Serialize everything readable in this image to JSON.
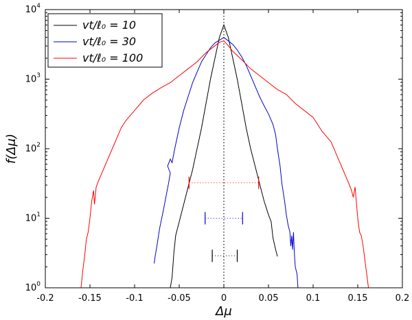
{
  "chart_data": {
    "type": "line",
    "title": "",
    "xlabel": "Δμ",
    "ylabel": "f(Δμ)",
    "xlim": [
      -0.2,
      0.2
    ],
    "ylim_log10": [
      0,
      4
    ],
    "yscale": "log",
    "x_ticks": [
      -0.2,
      -0.15,
      -0.1,
      -0.05,
      0,
      0.05,
      0.1,
      0.15,
      0.2
    ],
    "x_tick_labels": [
      "-0.2",
      "-0.15",
      "-0.1",
      "-0.05",
      "0",
      "0.05",
      "0.1",
      "0.15",
      "0.2"
    ],
    "y_ticks_log10": [
      0,
      1,
      2,
      3,
      4
    ],
    "y_tick_labels": [
      {
        "base": "10",
        "exp": "0"
      },
      {
        "base": "10",
        "exp": "1"
      },
      {
        "base": "10",
        "exp": "2"
      },
      {
        "base": "10",
        "exp": "3"
      },
      {
        "base": "10",
        "exp": "4"
      }
    ],
    "legend_position": "top-left",
    "reference_line_x": 0,
    "series": [
      {
        "name": "vt/ℓ₀ = 10",
        "color": "#000000",
        "points": [
          [
            -0.06,
            0.0
          ],
          [
            -0.058,
            0.15
          ],
          [
            -0.056,
            0.5
          ],
          [
            -0.054,
            0.75
          ],
          [
            -0.052,
            0.85
          ],
          [
            -0.05,
            0.95
          ],
          [
            -0.045,
            1.2
          ],
          [
            -0.04,
            1.45
          ],
          [
            -0.035,
            1.7
          ],
          [
            -0.03,
            2.0
          ],
          [
            -0.025,
            2.3
          ],
          [
            -0.02,
            2.65
          ],
          [
            -0.015,
            3.0
          ],
          [
            -0.01,
            3.3
          ],
          [
            -0.005,
            3.6
          ],
          [
            0.0,
            3.78
          ],
          [
            0.005,
            3.6
          ],
          [
            0.01,
            3.3
          ],
          [
            0.015,
            3.0
          ],
          [
            0.02,
            2.65
          ],
          [
            0.025,
            2.3
          ],
          [
            0.03,
            2.0
          ],
          [
            0.035,
            1.75
          ],
          [
            0.04,
            1.5
          ],
          [
            0.045,
            1.25
          ],
          [
            0.05,
            1.05
          ],
          [
            0.053,
            0.95
          ],
          [
            0.055,
            0.72
          ],
          [
            0.058,
            0.55
          ],
          [
            0.06,
            0.45
          ]
        ],
        "resolution_bar": {
          "center": 0.001,
          "half_width": 0.014,
          "y_log10": 0.46
        }
      },
      {
        "name": "vt/ℓ₀ = 30",
        "color": "#0000cc",
        "points": [
          [
            -0.078,
            0.35
          ],
          [
            -0.077,
            0.45
          ],
          [
            -0.075,
            0.6
          ],
          [
            -0.072,
            0.85
          ],
          [
            -0.068,
            1.1
          ],
          [
            -0.065,
            1.3
          ],
          [
            -0.062,
            1.5
          ],
          [
            -0.06,
            1.65
          ],
          [
            -0.063,
            1.75
          ],
          [
            -0.06,
            1.85
          ],
          [
            -0.058,
            1.8
          ],
          [
            -0.055,
            2.0
          ],
          [
            -0.05,
            2.3
          ],
          [
            -0.045,
            2.55
          ],
          [
            -0.04,
            2.75
          ],
          [
            -0.035,
            2.95
          ],
          [
            -0.03,
            3.1
          ],
          [
            -0.025,
            3.25
          ],
          [
            -0.02,
            3.35
          ],
          [
            -0.015,
            3.45
          ],
          [
            -0.01,
            3.52
          ],
          [
            -0.005,
            3.56
          ],
          [
            0.0,
            3.6
          ],
          [
            0.005,
            3.55
          ],
          [
            0.01,
            3.5
          ],
          [
            0.015,
            3.42
          ],
          [
            0.02,
            3.32
          ],
          [
            0.025,
            3.2
          ],
          [
            0.03,
            3.05
          ],
          [
            0.035,
            2.9
          ],
          [
            0.04,
            2.75
          ],
          [
            0.045,
            2.62
          ],
          [
            0.05,
            2.5
          ],
          [
            0.055,
            2.35
          ],
          [
            0.058,
            2.2
          ],
          [
            0.06,
            2.0
          ],
          [
            0.063,
            1.75
          ],
          [
            0.065,
            1.5
          ],
          [
            0.068,
            1.25
          ],
          [
            0.07,
            1.05
          ],
          [
            0.072,
            0.9
          ],
          [
            0.074,
            0.8
          ],
          [
            0.075,
            0.6
          ],
          [
            0.076,
            0.75
          ],
          [
            0.077,
            0.55
          ],
          [
            0.078,
            0.8
          ],
          [
            0.079,
            0.5
          ],
          [
            0.08,
            0.3
          ],
          [
            0.082,
            0.2
          ],
          [
            0.083,
            0.0
          ]
        ],
        "resolution_bar": {
          "center": 0.0,
          "half_width": 0.021,
          "y_log10": 1.0
        }
      },
      {
        "name": "vt/ℓ₀ = 100",
        "color": "#ff0000",
        "points": [
          [
            -0.16,
            0.0
          ],
          [
            -0.158,
            0.25
          ],
          [
            -0.156,
            0.45
          ],
          [
            -0.154,
            0.7
          ],
          [
            -0.152,
            0.8
          ],
          [
            -0.15,
            1.0
          ],
          [
            -0.148,
            1.25
          ],
          [
            -0.146,
            1.4
          ],
          [
            -0.145,
            1.2
          ],
          [
            -0.143,
            1.45
          ],
          [
            -0.14,
            1.55
          ],
          [
            -0.135,
            1.7
          ],
          [
            -0.13,
            1.85
          ],
          [
            -0.125,
            2.0
          ],
          [
            -0.12,
            2.15
          ],
          [
            -0.115,
            2.3
          ],
          [
            -0.11,
            2.4
          ],
          [
            -0.1,
            2.55
          ],
          [
            -0.09,
            2.7
          ],
          [
            -0.08,
            2.8
          ],
          [
            -0.07,
            2.88
          ],
          [
            -0.06,
            2.95
          ],
          [
            -0.05,
            3.05
          ],
          [
            -0.04,
            3.15
          ],
          [
            -0.03,
            3.25
          ],
          [
            -0.02,
            3.38
          ],
          [
            -0.01,
            3.48
          ],
          [
            -0.005,
            3.53
          ],
          [
            0.0,
            3.55
          ],
          [
            0.005,
            3.48
          ],
          [
            0.01,
            3.4
          ],
          [
            0.02,
            3.28
          ],
          [
            0.03,
            3.15
          ],
          [
            0.04,
            3.05
          ],
          [
            0.05,
            2.95
          ],
          [
            0.06,
            2.85
          ],
          [
            0.07,
            2.78
          ],
          [
            0.08,
            2.65
          ],
          [
            0.09,
            2.55
          ],
          [
            0.1,
            2.45
          ],
          [
            0.11,
            2.25
          ],
          [
            0.12,
            2.1
          ],
          [
            0.125,
            1.95
          ],
          [
            0.13,
            1.8
          ],
          [
            0.135,
            1.65
          ],
          [
            0.14,
            1.5
          ],
          [
            0.143,
            1.4
          ],
          [
            0.145,
            1.3
          ],
          [
            0.147,
            1.45
          ],
          [
            0.149,
            1.15
          ],
          [
            0.15,
            1.0
          ],
          [
            0.152,
            0.8
          ],
          [
            0.154,
            0.75
          ],
          [
            0.156,
            0.6
          ],
          [
            0.158,
            0.4
          ],
          [
            0.16,
            0.2
          ],
          [
            0.162,
            0.0
          ]
        ],
        "resolution_bar": {
          "center": 0.0,
          "half_width": 0.039,
          "y_log10": 1.51
        }
      }
    ]
  }
}
